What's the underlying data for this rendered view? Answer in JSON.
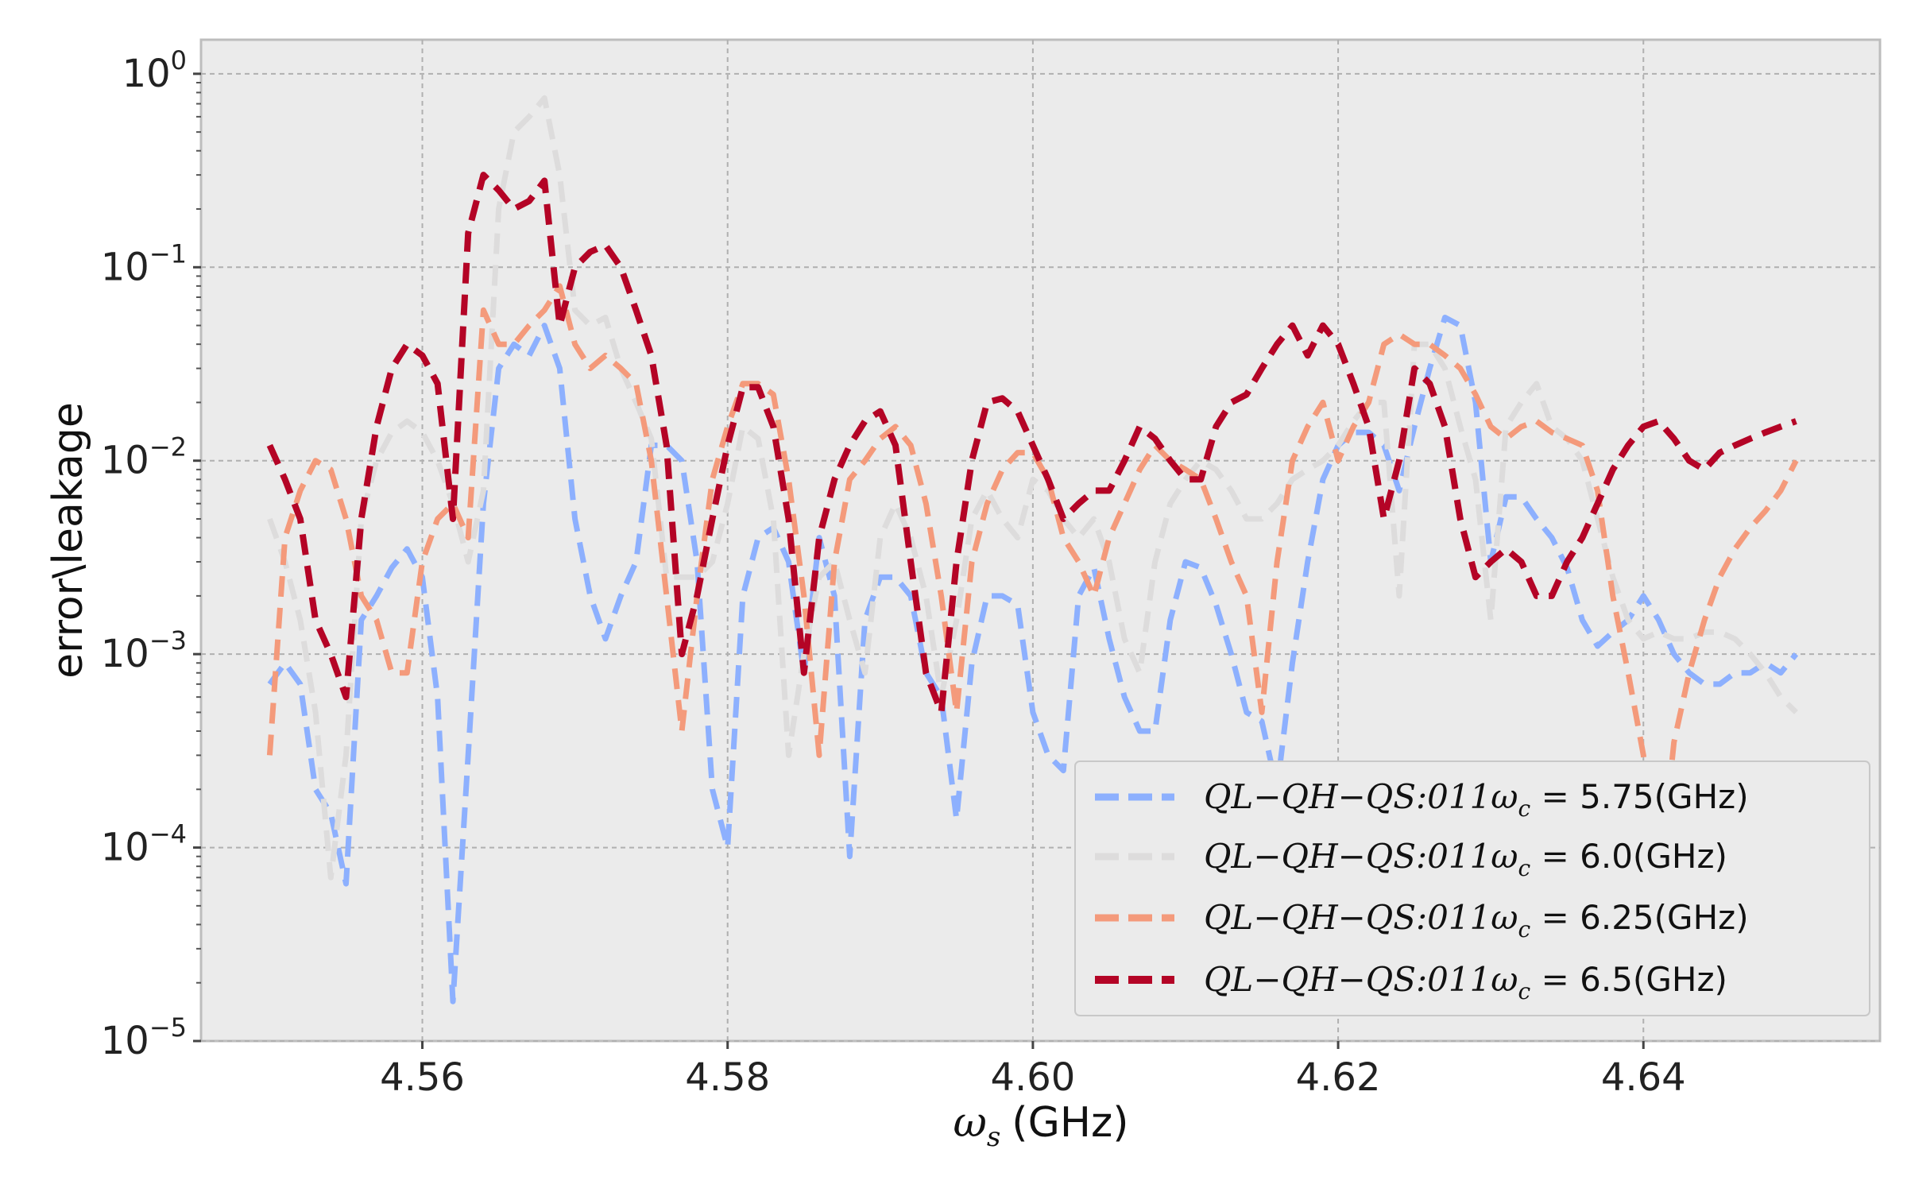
{
  "chart_data": {
    "type": "line",
    "xlabel_symbol": "ω",
    "xlabel_sub": "s",
    "xlabel_unit": "(GHz)",
    "ylabel": "error\\leakage",
    "y_scale": "log",
    "xlim": [
      4.5455,
      4.6555
    ],
    "ylim": [
      1e-05,
      1.5
    ],
    "grid": true,
    "legend_position": "bottom-right",
    "xticks": [
      "4.56",
      "4.58",
      "4.60",
      "4.62",
      "4.64"
    ],
    "yticks": [
      {
        "base": "10",
        "exp": "0"
      },
      {
        "base": "10",
        "exp": "-1"
      },
      {
        "base": "10",
        "exp": "-2"
      },
      {
        "base": "10",
        "exp": "-3"
      },
      {
        "base": "10",
        "exp": "-4"
      },
      {
        "base": "10",
        "exp": "-5"
      }
    ],
    "x": [
      4.55,
      4.551,
      4.552,
      4.553,
      4.554,
      4.555,
      4.556,
      4.557,
      4.558,
      4.559,
      4.56,
      4.561,
      4.562,
      4.563,
      4.564,
      4.565,
      4.566,
      4.567,
      4.568,
      4.569,
      4.57,
      4.571,
      4.572,
      4.573,
      4.574,
      4.575,
      4.576,
      4.577,
      4.578,
      4.579,
      4.58,
      4.581,
      4.582,
      4.583,
      4.584,
      4.585,
      4.586,
      4.587,
      4.588,
      4.589,
      4.59,
      4.591,
      4.592,
      4.593,
      4.594,
      4.595,
      4.596,
      4.597,
      4.598,
      4.599,
      4.6,
      4.601,
      4.602,
      4.603,
      4.604,
      4.605,
      4.606,
      4.607,
      4.608,
      4.609,
      4.61,
      4.611,
      4.612,
      4.613,
      4.614,
      4.615,
      4.616,
      4.617,
      4.618,
      4.619,
      4.62,
      4.621,
      4.622,
      4.623,
      4.624,
      4.625,
      4.626,
      4.627,
      4.628,
      4.629,
      4.63,
      4.631,
      4.632,
      4.633,
      4.634,
      4.635,
      4.636,
      4.637,
      4.638,
      4.639,
      4.64,
      4.641,
      4.642,
      4.643,
      4.644,
      4.645,
      4.646,
      4.647,
      4.648,
      4.649,
      4.65
    ],
    "series": [
      {
        "name_prefix": "QL−QH−QS:011ω",
        "name_sub": "c",
        "name_eq": " = ",
        "name_value": "5.75(GHz)",
        "color": "#8db0fe",
        "values": [
          0.0007,
          0.0009,
          0.0007,
          0.0002,
          0.00015,
          6.5e-05,
          0.0015,
          0.002,
          0.0028,
          0.0035,
          0.0025,
          0.0006,
          1.6e-05,
          0.0003,
          0.006,
          0.03,
          0.04,
          0.035,
          0.05,
          0.03,
          0.005,
          0.002,
          0.0012,
          0.002,
          0.003,
          0.012,
          0.012,
          0.01,
          0.003,
          0.0002,
          0.0001,
          0.002,
          0.004,
          0.0045,
          0.003,
          0.0008,
          0.004,
          0.002,
          9e-05,
          0.0015,
          0.0025,
          0.0025,
          0.002,
          0.0008,
          0.0006,
          0.00014,
          0.0009,
          0.002,
          0.002,
          0.0018,
          0.0005,
          0.0003,
          0.00025,
          0.002,
          0.0028,
          0.0012,
          0.0006,
          0.0004,
          0.0004,
          0.0015,
          0.003,
          0.0028,
          0.0018,
          0.001,
          0.0005,
          0.00045,
          0.0002,
          0.0009,
          0.003,
          0.008,
          0.012,
          0.014,
          0.014,
          0.012,
          0.007,
          0.015,
          0.03,
          0.055,
          0.05,
          0.02,
          0.003,
          0.0065,
          0.0065,
          0.005,
          0.004,
          0.0028,
          0.0015,
          0.0011,
          0.0013,
          0.0015,
          0.002,
          0.0015,
          0.001,
          0.0008,
          0.0007,
          0.0007,
          0.0008,
          0.0008,
          0.0009,
          0.0008,
          0.001
        ]
      },
      {
        "name_prefix": "QL−QH−QS:011ω",
        "name_sub": "c",
        "name_eq": " = ",
        "name_value": "6.0(GHz)",
        "color": "#dddcdc",
        "values": [
          0.005,
          0.003,
          0.0015,
          0.0005,
          7e-05,
          0.0003,
          0.005,
          0.01,
          0.014,
          0.016,
          0.014,
          0.01,
          0.006,
          0.003,
          0.007,
          0.2,
          0.5,
          0.6,
          0.75,
          0.3,
          0.06,
          0.05,
          0.055,
          0.03,
          0.02,
          0.013,
          0.0025,
          0.0025,
          0.0025,
          0.003,
          0.006,
          0.015,
          0.013,
          0.005,
          0.0003,
          0.001,
          0.0025,
          0.003,
          0.0015,
          0.0008,
          0.004,
          0.006,
          0.004,
          0.002,
          0.0006,
          0.0015,
          0.005,
          0.007,
          0.005,
          0.004,
          0.008,
          0.007,
          0.005,
          0.004,
          0.005,
          0.003,
          0.0012,
          0.0008,
          0.003,
          0.006,
          0.008,
          0.01,
          0.009,
          0.007,
          0.005,
          0.005,
          0.006,
          0.008,
          0.009,
          0.01,
          0.012,
          0.016,
          0.02,
          0.02,
          0.002,
          0.04,
          0.04,
          0.03,
          0.015,
          0.008,
          0.0015,
          0.015,
          0.02,
          0.025,
          0.015,
          0.013,
          0.01,
          0.005,
          0.0025,
          0.0015,
          0.0012,
          0.0013,
          0.0012,
          0.0012,
          0.0013,
          0.0013,
          0.0012,
          0.001,
          0.0008,
          0.0006,
          0.0005
        ]
      },
      {
        "name_prefix": "QL−QH−QS:011ω",
        "name_sub": "c",
        "name_eq": " = ",
        "name_value": "6.25(GHz)",
        "color": "#f49a7b",
        "values": [
          0.0003,
          0.004,
          0.007,
          0.01,
          0.009,
          0.005,
          0.002,
          0.0015,
          0.0008,
          0.0008,
          0.003,
          0.005,
          0.006,
          0.004,
          0.06,
          0.04,
          0.04,
          0.05,
          0.06,
          0.08,
          0.04,
          0.03,
          0.035,
          0.03,
          0.025,
          0.01,
          0.002,
          0.0004,
          0.002,
          0.008,
          0.015,
          0.025,
          0.025,
          0.022,
          0.008,
          0.002,
          0.0003,
          0.003,
          0.008,
          0.01,
          0.013,
          0.015,
          0.012,
          0.006,
          0.002,
          0.0005,
          0.003,
          0.006,
          0.009,
          0.011,
          0.011,
          0.008,
          0.004,
          0.003,
          0.002,
          0.004,
          0.006,
          0.009,
          0.012,
          0.01,
          0.009,
          0.008,
          0.005,
          0.003,
          0.002,
          0.0005,
          0.003,
          0.01,
          0.015,
          0.02,
          0.01,
          0.015,
          0.02,
          0.04,
          0.045,
          0.04,
          0.04,
          0.035,
          0.03,
          0.022,
          0.015,
          0.013,
          0.015,
          0.016,
          0.014,
          0.013,
          0.012,
          0.007,
          0.002,
          0.0008,
          0.0003,
          6e-05,
          0.00035,
          0.0008,
          0.0015,
          0.0025,
          0.0035,
          0.0045,
          0.0055,
          0.007,
          0.01
        ]
      },
      {
        "name_prefix": "QL−QH−QS:011ω",
        "name_sub": "c",
        "name_eq": " = ",
        "name_value": "6.5(GHz)",
        "color": "#b40426",
        "values": [
          0.012,
          0.008,
          0.005,
          0.0015,
          0.001,
          0.0006,
          0.005,
          0.015,
          0.03,
          0.04,
          0.035,
          0.025,
          0.005,
          0.15,
          0.3,
          0.25,
          0.2,
          0.22,
          0.28,
          0.05,
          0.1,
          0.12,
          0.13,
          0.1,
          0.06,
          0.035,
          0.012,
          0.001,
          0.002,
          0.005,
          0.012,
          0.024,
          0.024,
          0.015,
          0.005,
          0.0008,
          0.004,
          0.008,
          0.012,
          0.016,
          0.018,
          0.012,
          0.003,
          0.0008,
          0.0005,
          0.003,
          0.01,
          0.02,
          0.021,
          0.018,
          0.012,
          0.008,
          0.005,
          0.006,
          0.007,
          0.007,
          0.01,
          0.015,
          0.013,
          0.01,
          0.008,
          0.008,
          0.015,
          0.02,
          0.022,
          0.03,
          0.04,
          0.05,
          0.035,
          0.05,
          0.04,
          0.025,
          0.015,
          0.005,
          0.01,
          0.03,
          0.025,
          0.015,
          0.005,
          0.0025,
          0.003,
          0.0035,
          0.003,
          0.002,
          0.002,
          0.003,
          0.004,
          0.006,
          0.009,
          0.012,
          0.015,
          0.016,
          0.013,
          0.01,
          0.009,
          0.011,
          0.012,
          0.013,
          0.014,
          0.015,
          0.016
        ]
      }
    ]
  }
}
